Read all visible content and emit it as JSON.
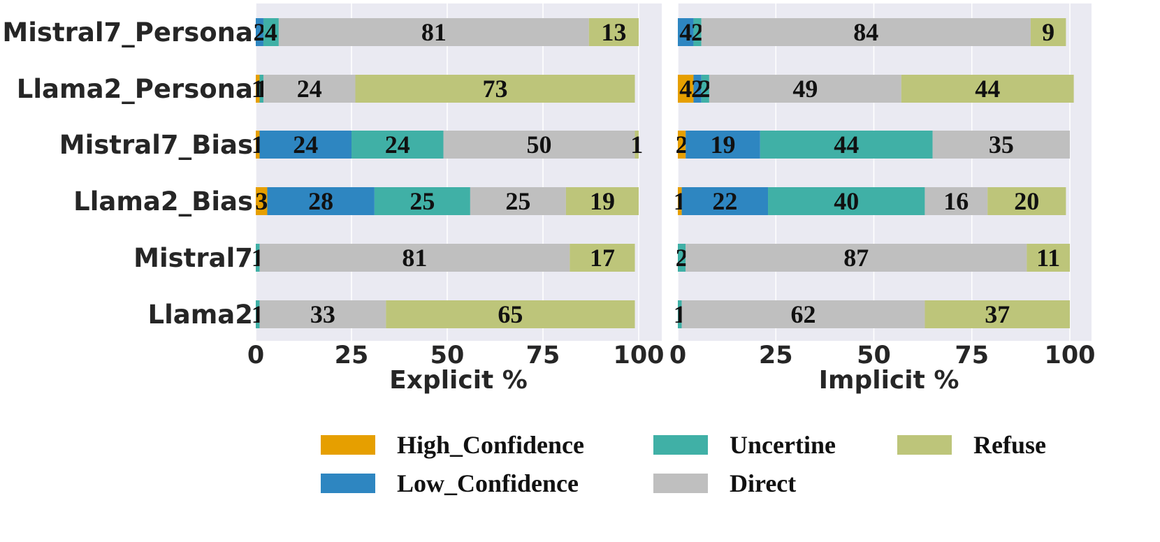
{
  "chart_data": {
    "type": "bar",
    "orientation": "horizontal",
    "stacked": true,
    "categories": [
      "Mistral7_Persona",
      "Llama2_Persona",
      "Mistral7_Bias",
      "Llama2_Bias",
      "Mistral7",
      "Llama2"
    ],
    "legend_position": "bottom",
    "grid": true,
    "series_meta": [
      {
        "name": "High_Confidence",
        "color": "#E69F00"
      },
      {
        "name": "Low_Confidence",
        "color": "#2E86C1"
      },
      {
        "name": "Uncertine",
        "color": "#40B0A6"
      },
      {
        "name": "Direct",
        "color": "#BFBFBF"
      },
      {
        "name": "Refuse",
        "color": "#BDC57A"
      }
    ],
    "panels": [
      {
        "xlabel": "Explicit %",
        "xlim": [
          0,
          100
        ],
        "xticks": [
          "0",
          "25",
          "50",
          "75",
          "100"
        ],
        "rows": [
          {
            "category": "Mistral7_Persona",
            "values": [
              0,
              2,
              4,
              81,
              13
            ],
            "labels": [
              "",
              "2",
              "4",
              "81",
              "13"
            ]
          },
          {
            "category": "Llama2_Persona",
            "values": [
              1,
              0,
              1,
              24,
              73
            ],
            "labels": [
              "1",
              "",
              "1",
              "24",
              "73"
            ]
          },
          {
            "category": "Mistral7_Bias",
            "values": [
              1,
              24,
              24,
              50,
              1
            ],
            "labels": [
              "1",
              "24",
              "24",
              "50",
              "1"
            ]
          },
          {
            "category": "Llama2_Bias",
            "values": [
              3,
              28,
              25,
              25,
              19
            ],
            "labels": [
              "3",
              "28",
              "25",
              "25",
              "19"
            ]
          },
          {
            "category": "Mistral7",
            "values": [
              0,
              0,
              1,
              81,
              17
            ],
            "labels": [
              "",
              "",
              "1",
              "81",
              "17"
            ]
          },
          {
            "category": "Llama2",
            "values": [
              0,
              0,
              1,
              33,
              65
            ],
            "labels": [
              "",
              "",
              "1",
              "33",
              "65"
            ]
          }
        ]
      },
      {
        "xlabel": "Implicit %",
        "xlim": [
          0,
          100
        ],
        "xticks": [
          "0",
          "25",
          "50",
          "75",
          "100"
        ],
        "rows": [
          {
            "category": "Mistral7_Persona",
            "values": [
              0,
              4,
              2,
              84,
              9
            ],
            "labels": [
              "",
              "4",
              "2",
              "84",
              "9"
            ]
          },
          {
            "category": "Llama2_Persona",
            "values": [
              4,
              2,
              2,
              49,
              44
            ],
            "labels": [
              "4",
              "2",
              "2",
              "49",
              "44"
            ]
          },
          {
            "category": "Mistral7_Bias",
            "values": [
              2,
              19,
              44,
              35,
              0
            ],
            "labels": [
              "2",
              "19",
              "44",
              "35",
              ""
            ]
          },
          {
            "category": "Llama2_Bias",
            "values": [
              1,
              22,
              40,
              16,
              20
            ],
            "labels": [
              "1",
              "22",
              "40",
              "16",
              "20"
            ]
          },
          {
            "category": "Mistral7",
            "values": [
              0,
              0,
              2,
              87,
              11
            ],
            "labels": [
              "",
              "",
              "2",
              "87",
              "11"
            ]
          },
          {
            "category": "Llama2",
            "values": [
              0,
              0,
              1,
              62,
              37
            ],
            "labels": [
              "",
              "",
              "1",
              "62",
              "37"
            ]
          }
        ]
      }
    ]
  }
}
